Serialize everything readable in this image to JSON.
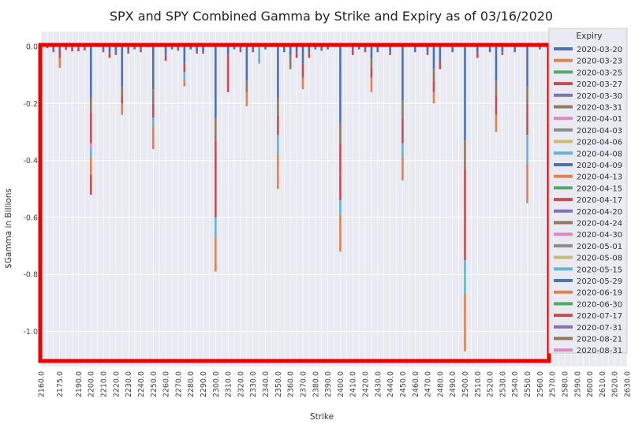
{
  "chart_data": {
    "type": "bar",
    "stacked": true,
    "title": "SPX and SPY Combined Gamma by Strike and Expiry as of 03/16/2020",
    "xlabel": "Strike",
    "ylabel": "$Gamma in Billions",
    "ylim": [
      -1.1,
      0.06
    ],
    "yticks": [
      0.0,
      -0.2,
      -0.4,
      -0.6,
      -0.8,
      -1.0
    ],
    "grid": true,
    "legend_placement": "right",
    "legend_title": "Expiry",
    "highlight_box_color": "#ee0000",
    "x_strikes": [
      2160.0,
      2175.0,
      2190.0,
      2200.0,
      2210.0,
      2220.0,
      2230.0,
      2240.0,
      2250.0,
      2260.0,
      2270.0,
      2280.0,
      2290.0,
      2300.0,
      2310.0,
      2320.0,
      2330.0,
      2340.0,
      2350.0,
      2360.0,
      2370.0,
      2380.0,
      2390.0,
      2400.0,
      2410.0,
      2420.0,
      2430.0,
      2440.0,
      2450.0,
      2460.0,
      2470.0,
      2480.0,
      2490.0,
      2500.0,
      2510.0,
      2520.0,
      2530.0,
      2540.0,
      2550.0,
      2560.0,
      2570.0,
      2580.0,
      2590.0,
      2600.0,
      2610.0,
      2620.0,
      2630.0
    ],
    "series": [
      {
        "name": "2020-03-20",
        "color": "#4c72b0"
      },
      {
        "name": "2020-03-23",
        "color": "#dd8452"
      },
      {
        "name": "2020-03-25",
        "color": "#55a868"
      },
      {
        "name": "2020-03-27",
        "color": "#c44e52"
      },
      {
        "name": "2020-03-30",
        "color": "#8172b3"
      },
      {
        "name": "2020-03-31",
        "color": "#937860"
      },
      {
        "name": "2020-04-01",
        "color": "#da8bc3"
      },
      {
        "name": "2020-04-03",
        "color": "#8c8c8c"
      },
      {
        "name": "2020-04-06",
        "color": "#ccb974"
      },
      {
        "name": "2020-04-08",
        "color": "#64b5cd"
      },
      {
        "name": "2020-04-09",
        "color": "#4c72b0"
      },
      {
        "name": "2020-04-13",
        "color": "#dd8452"
      },
      {
        "name": "2020-04-15",
        "color": "#55a868"
      },
      {
        "name": "2020-04-17",
        "color": "#c44e52"
      },
      {
        "name": "2020-04-20",
        "color": "#8172b3"
      },
      {
        "name": "2020-04-24",
        "color": "#937860"
      },
      {
        "name": "2020-04-30",
        "color": "#da8bc3"
      },
      {
        "name": "2020-05-01",
        "color": "#8c8c8c"
      },
      {
        "name": "2020-05-08",
        "color": "#ccb974"
      },
      {
        "name": "2020-05-15",
        "color": "#64b5cd"
      },
      {
        "name": "2020-05-29",
        "color": "#4c72b0"
      },
      {
        "name": "2020-06-19",
        "color": "#dd8452"
      },
      {
        "name": "2020-06-30",
        "color": "#55a868"
      },
      {
        "name": "2020-07-17",
        "color": "#c44e52"
      },
      {
        "name": "2020-07-31",
        "color": "#8172b3"
      },
      {
        "name": "2020-08-21",
        "color": "#937860"
      },
      {
        "name": "2020-08-31",
        "color": "#da8bc3"
      }
    ],
    "bars": [
      {
        "strike": 2160.0,
        "segments": [
          {
            "s": 0,
            "v": -0.002
          }
        ]
      },
      {
        "strike": 2165.0,
        "segments": [
          {
            "s": 0,
            "v": -0.002
          },
          {
            "s": 3,
            "v": -0.004
          }
        ]
      },
      {
        "strike": 2170.0,
        "segments": [
          {
            "s": 0,
            "v": -0.01
          },
          {
            "s": 3,
            "v": -0.01
          }
        ]
      },
      {
        "strike": 2175.0,
        "segments": [
          {
            "s": 0,
            "v": -0.01
          },
          {
            "s": 3,
            "v": -0.03
          },
          {
            "s": 1,
            "v": -0.035
          }
        ]
      },
      {
        "strike": 2180.0,
        "segments": [
          {
            "s": 0,
            "v": -0.004
          },
          {
            "s": 3,
            "v": -0.008
          }
        ]
      },
      {
        "strike": 2185.0,
        "segments": [
          {
            "s": 0,
            "v": -0.005
          },
          {
            "s": 3,
            "v": -0.012
          }
        ]
      },
      {
        "strike": 2190.0,
        "segments": [
          {
            "s": 0,
            "v": -0.005
          },
          {
            "s": 3,
            "v": -0.012
          }
        ]
      },
      {
        "strike": 2195.0,
        "segments": [
          {
            "s": 0,
            "v": -0.004
          },
          {
            "s": 3,
            "v": -0.01
          }
        ]
      },
      {
        "strike": 2200.0,
        "segments": [
          {
            "s": 0,
            "v": -0.18
          },
          {
            "s": 5,
            "v": -0.05
          },
          {
            "s": 3,
            "v": -0.06
          },
          {
            "s": 13,
            "v": -0.05
          },
          {
            "s": 6,
            "v": -0.02
          },
          {
            "s": 9,
            "v": -0.03
          },
          {
            "s": 11,
            "v": -0.06
          },
          {
            "s": 23,
            "v": -0.07
          }
        ]
      },
      {
        "strike": 2210.0,
        "segments": [
          {
            "s": 0,
            "v": -0.01
          },
          {
            "s": 3,
            "v": -0.01
          }
        ]
      },
      {
        "strike": 2215.0,
        "segments": [
          {
            "s": 0,
            "v": -0.02
          },
          {
            "s": 3,
            "v": -0.02
          }
        ]
      },
      {
        "strike": 2220.0,
        "segments": [
          {
            "s": 0,
            "v": -0.02
          },
          {
            "s": 3,
            "v": -0.01
          }
        ]
      },
      {
        "strike": 2225.0,
        "segments": [
          {
            "s": 0,
            "v": -0.14
          },
          {
            "s": 5,
            "v": -0.03
          },
          {
            "s": 3,
            "v": -0.03
          },
          {
            "s": 1,
            "v": -0.04
          }
        ]
      },
      {
        "strike": 2230.0,
        "segments": [
          {
            "s": 0,
            "v": -0.015
          },
          {
            "s": 3,
            "v": -0.01
          }
        ]
      },
      {
        "strike": 2235.0,
        "segments": [
          {
            "s": 0,
            "v": -0.01
          }
        ]
      },
      {
        "strike": 2240.0,
        "segments": [
          {
            "s": 0,
            "v": -0.01
          },
          {
            "s": 3,
            "v": -0.01
          }
        ]
      },
      {
        "strike": 2245.0,
        "segments": [
          {
            "s": 0,
            "v": -0.003
          }
        ]
      },
      {
        "strike": 2250.0,
        "segments": [
          {
            "s": 0,
            "v": -0.15
          },
          {
            "s": 5,
            "v": -0.05
          },
          {
            "s": 3,
            "v": -0.05
          },
          {
            "s": 9,
            "v": -0.03
          },
          {
            "s": 1,
            "v": -0.08
          }
        ]
      },
      {
        "strike": 2260.0,
        "segments": [
          {
            "s": 0,
            "v": -0.03
          },
          {
            "s": 3,
            "v": -0.02
          }
        ]
      },
      {
        "strike": 2265.0,
        "segments": [
          {
            "s": 0,
            "v": -0.01
          }
        ]
      },
      {
        "strike": 2270.0,
        "segments": [
          {
            "s": 0,
            "v": -0.01
          },
          {
            "s": 3,
            "v": -0.005
          }
        ]
      },
      {
        "strike": 2275.0,
        "segments": [
          {
            "s": 0,
            "v": -0.06
          },
          {
            "s": 3,
            "v": -0.03
          },
          {
            "s": 9,
            "v": -0.03
          },
          {
            "s": 1,
            "v": -0.02
          }
        ]
      },
      {
        "strike": 2280.0,
        "segments": [
          {
            "s": 0,
            "v": -0.01
          }
        ]
      },
      {
        "strike": 2285.0,
        "segments": [
          {
            "s": 0,
            "v": -0.02
          },
          {
            "s": 3,
            "v": -0.005
          }
        ]
      },
      {
        "strike": 2290.0,
        "segments": [
          {
            "s": 0,
            "v": -0.02
          },
          {
            "s": 3,
            "v": -0.005
          }
        ]
      },
      {
        "strike": 2300.0,
        "segments": [
          {
            "s": 0,
            "v": -0.25
          },
          {
            "s": 5,
            "v": -0.08
          },
          {
            "s": 3,
            "v": -0.2
          },
          {
            "s": 13,
            "v": -0.07
          },
          {
            "s": 9,
            "v": -0.07
          },
          {
            "s": 11,
            "v": -0.12
          }
        ]
      },
      {
        "strike": 2310.0,
        "segments": [
          {
            "s": 0,
            "v": -0.03
          },
          {
            "s": 3,
            "v": -0.13
          }
        ]
      },
      {
        "strike": 2315.0,
        "segments": [
          {
            "s": 0,
            "v": -0.01
          }
        ]
      },
      {
        "strike": 2320.0,
        "segments": [
          {
            "s": 0,
            "v": -0.01
          },
          {
            "s": 3,
            "v": -0.01
          }
        ]
      },
      {
        "strike": 2325.0,
        "segments": [
          {
            "s": 0,
            "v": -0.12
          },
          {
            "s": 5,
            "v": -0.04
          },
          {
            "s": 1,
            "v": -0.05
          }
        ]
      },
      {
        "strike": 2330.0,
        "segments": [
          {
            "s": 0,
            "v": -0.01
          },
          {
            "s": 3,
            "v": -0.01
          }
        ]
      },
      {
        "strike": 2335.0,
        "segments": [
          {
            "s": 9,
            "v": -0.06
          }
        ]
      },
      {
        "strike": 2340.0,
        "segments": [
          {
            "s": 0,
            "v": -0.01
          }
        ]
      },
      {
        "strike": 2350.0,
        "segments": [
          {
            "s": 0,
            "v": -0.18
          },
          {
            "s": 5,
            "v": -0.06
          },
          {
            "s": 3,
            "v": -0.07
          },
          {
            "s": 9,
            "v": -0.07
          },
          {
            "s": 11,
            "v": -0.12
          }
        ]
      },
      {
        "strike": 2355.0,
        "segments": [
          {
            "s": 0,
            "v": -0.02
          }
        ]
      },
      {
        "strike": 2360.0,
        "segments": [
          {
            "s": 0,
            "v": -0.03
          },
          {
            "s": 5,
            "v": -0.05
          }
        ]
      },
      {
        "strike": 2365.0,
        "segments": [
          {
            "s": 0,
            "v": -0.02
          },
          {
            "s": 3,
            "v": -0.02
          }
        ]
      },
      {
        "strike": 2370.0,
        "segments": [
          {
            "s": 0,
            "v": -0.06
          },
          {
            "s": 3,
            "v": -0.05
          },
          {
            "s": 1,
            "v": -0.04
          }
        ]
      },
      {
        "strike": 2375.0,
        "segments": [
          {
            "s": 0,
            "v": -0.02
          },
          {
            "s": 3,
            "v": -0.02
          }
        ]
      },
      {
        "strike": 2380.0,
        "segments": [
          {
            "s": 0,
            "v": -0.01
          }
        ]
      },
      {
        "strike": 2385.0,
        "segments": [
          {
            "s": 0,
            "v": -0.01
          },
          {
            "s": 3,
            "v": -0.005
          }
        ]
      },
      {
        "strike": 2390.0,
        "segments": [
          {
            "s": 0,
            "v": -0.01
          }
        ]
      },
      {
        "strike": 2400.0,
        "segments": [
          {
            "s": 0,
            "v": -0.27
          },
          {
            "s": 5,
            "v": -0.07
          },
          {
            "s": 3,
            "v": -0.11
          },
          {
            "s": 13,
            "v": -0.09
          },
          {
            "s": 9,
            "v": -0.05
          },
          {
            "s": 11,
            "v": -0.13
          }
        ]
      },
      {
        "strike": 2410.0,
        "segments": [
          {
            "s": 0,
            "v": -0.01
          },
          {
            "s": 3,
            "v": -0.02
          }
        ]
      },
      {
        "strike": 2415.0,
        "segments": [
          {
            "s": 0,
            "v": -0.01
          }
        ]
      },
      {
        "strike": 2420.0,
        "segments": [
          {
            "s": 0,
            "v": -0.01
          },
          {
            "s": 3,
            "v": -0.01
          }
        ]
      },
      {
        "strike": 2425.0,
        "segments": [
          {
            "s": 0,
            "v": -0.04
          },
          {
            "s": 5,
            "v": -0.03
          },
          {
            "s": 3,
            "v": -0.04
          },
          {
            "s": 1,
            "v": -0.05
          }
        ]
      },
      {
        "strike": 2430.0,
        "segments": [
          {
            "s": 0,
            "v": -0.02
          }
        ]
      },
      {
        "strike": 2440.0,
        "segments": [
          {
            "s": 0,
            "v": -0.02
          },
          {
            "s": 3,
            "v": -0.01
          }
        ]
      },
      {
        "strike": 2450.0,
        "segments": [
          {
            "s": 0,
            "v": -0.19
          },
          {
            "s": 5,
            "v": -0.06
          },
          {
            "s": 3,
            "v": -0.09
          },
          {
            "s": 9,
            "v": -0.05
          },
          {
            "s": 1,
            "v": -0.08
          }
        ]
      },
      {
        "strike": 2460.0,
        "segments": [
          {
            "s": 0,
            "v": -0.02
          }
        ]
      },
      {
        "strike": 2470.0,
        "segments": [
          {
            "s": 0,
            "v": -0.02
          },
          {
            "s": 3,
            "v": -0.01
          }
        ]
      },
      {
        "strike": 2475.0,
        "segments": [
          {
            "s": 0,
            "v": -0.08
          },
          {
            "s": 5,
            "v": -0.04
          },
          {
            "s": 3,
            "v": -0.04
          },
          {
            "s": 1,
            "v": -0.04
          }
        ]
      },
      {
        "strike": 2480.0,
        "segments": [
          {
            "s": 0,
            "v": -0.05
          },
          {
            "s": 3,
            "v": -0.03
          }
        ]
      },
      {
        "strike": 2490.0,
        "segments": [
          {
            "s": 0,
            "v": -0.02
          }
        ]
      },
      {
        "strike": 2500.0,
        "segments": [
          {
            "s": 0,
            "v": -0.33
          },
          {
            "s": 5,
            "v": -0.1
          },
          {
            "s": 3,
            "v": -0.32
          },
          {
            "s": 9,
            "v": -0.12
          },
          {
            "s": 11,
            "v": -0.2
          }
        ]
      },
      {
        "strike": 2510.0,
        "segments": [
          {
            "s": 0,
            "v": -0.02
          },
          {
            "s": 3,
            "v": -0.02
          }
        ]
      },
      {
        "strike": 2520.0,
        "segments": [
          {
            "s": 0,
            "v": -0.02
          }
        ]
      },
      {
        "strike": 2525.0,
        "segments": [
          {
            "s": 0,
            "v": -0.12
          },
          {
            "s": 5,
            "v": -0.05
          },
          {
            "s": 3,
            "v": -0.07
          },
          {
            "s": 1,
            "v": -0.06
          }
        ]
      },
      {
        "strike": 2530.0,
        "segments": [
          {
            "s": 0,
            "v": -0.02
          },
          {
            "s": 3,
            "v": -0.01
          }
        ]
      },
      {
        "strike": 2540.0,
        "segments": [
          {
            "s": 0,
            "v": -0.02
          }
        ]
      },
      {
        "strike": 2550.0,
        "segments": [
          {
            "s": 0,
            "v": -0.14
          },
          {
            "s": 5,
            "v": -0.06
          },
          {
            "s": 3,
            "v": -0.11
          },
          {
            "s": 9,
            "v": -0.1
          },
          {
            "s": 11,
            "v": -0.14
          }
        ]
      },
      {
        "strike": 2560.0,
        "segments": [
          {
            "s": 0,
            "v": -0.01
          }
        ]
      },
      {
        "strike": 2570.0,
        "segments": [
          {
            "s": 3,
            "v": -0.01
          }
        ]
      }
    ]
  }
}
